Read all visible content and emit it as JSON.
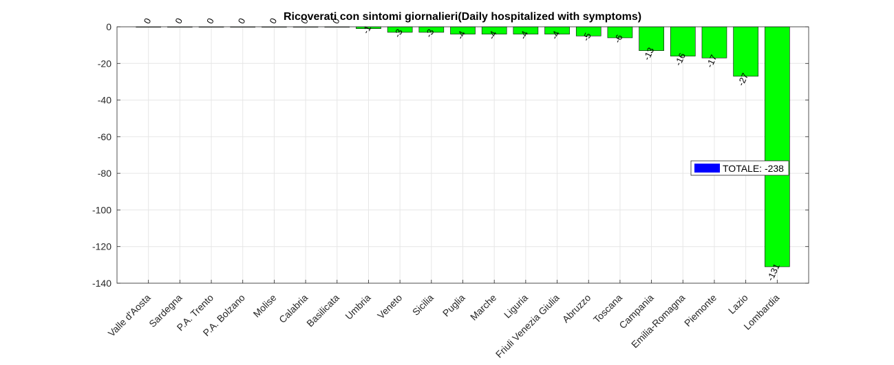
{
  "chart_data": {
    "type": "bar",
    "title": "Ricoverati con sintomi giornalieri(Daily hospitalized with symptoms)",
    "xlabel": "",
    "ylabel": "",
    "ylim": [
      -140,
      0
    ],
    "yticks": [
      0,
      -20,
      -40,
      -60,
      -80,
      -100,
      -120,
      -140
    ],
    "grid": true,
    "categories": [
      "Valle d'Aosta",
      "Sardegna",
      "P.A. Trento",
      "P.A. Bolzano",
      "Molise",
      "Calabria",
      "Basilicata",
      "Umbria",
      "Veneto",
      "Sicilia",
      "Puglia",
      "Marche",
      "Liguria",
      "Friuli Venezia Giulia",
      "Abruzzo",
      "Toscana",
      "Campania",
      "Emilia-Romagna",
      "Piemonte",
      "Lazio",
      "Lombardia"
    ],
    "series": [
      {
        "values": [
          0,
          0,
          0,
          0,
          0,
          0,
          0,
          -1,
          -3,
          -3,
          -4,
          -4,
          -4,
          -4,
          -5,
          -6,
          -13,
          -16,
          -17,
          -27,
          -131
        ],
        "color": "#00ff00"
      }
    ],
    "data_labels": [
      "0",
      "0",
      "0",
      "0",
      "0",
      "0",
      "0",
      "-1",
      "-3",
      "-3",
      "-4",
      "-4",
      "-4",
      "-4",
      "-5",
      "-6",
      "-13",
      "-16",
      "-17",
      "-27",
      "-131"
    ],
    "legend": {
      "placement": "right",
      "entries": [
        {
          "label": "TOTALE: -238",
          "color": "#0000ff"
        }
      ]
    }
  }
}
